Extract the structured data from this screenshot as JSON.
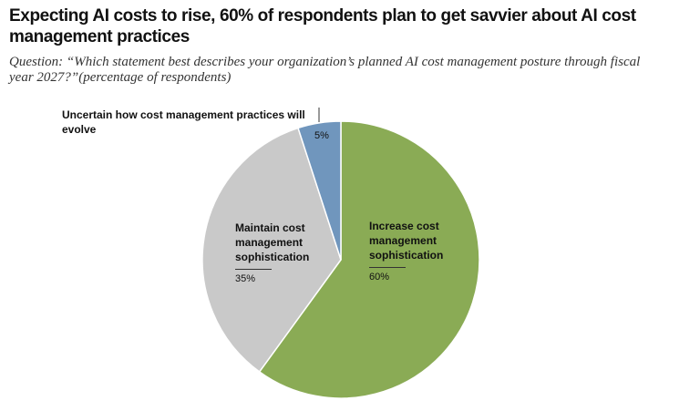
{
  "chart_data": {
    "type": "pie",
    "title": "Expecting AI costs to rise, 60% of respondents plan to get savvier about AI cost management practices",
    "subtitle": "Question: “Which statement best describes your organization’s planned AI cost management posture through fiscal year 2027?”(percentage of respondents)",
    "categories": [
      "Increase cost management sophistication",
      "Maintain cost management sophistication",
      "Uncertain how cost management practices will evolve"
    ],
    "values": [
      60,
      35,
      5
    ],
    "value_labels": [
      "60%",
      "35%",
      "5%"
    ],
    "colors": [
      "#8aab55",
      "#c9c9c9",
      "#7096bd"
    ]
  }
}
